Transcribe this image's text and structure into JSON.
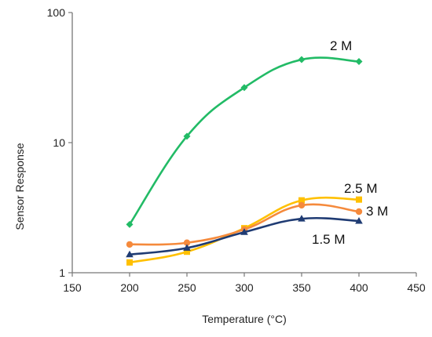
{
  "chart_data": {
    "type": "line",
    "title": "",
    "xlabel": "Temperature (°C)",
    "ylabel": "Sensor Response",
    "xlim": [
      150,
      450
    ],
    "ylim": [
      1,
      100
    ],
    "yscale": "log",
    "grid": false,
    "legend": "none",
    "x_ticks": [
      "150",
      "200",
      "250",
      "300",
      "350",
      "400",
      "450"
    ],
    "y_ticks": [
      "1",
      "10",
      "100"
    ],
    "series": [
      {
        "name": "2 M",
        "color": "#22bb66",
        "marker": "diamond",
        "x": [
          200,
          250,
          300,
          350,
          400
        ],
        "values": [
          2.35,
          11.2,
          26.5,
          43.5,
          42.0
        ]
      },
      {
        "name": "2.5 M",
        "color": "#ffc000",
        "marker": "square",
        "x": [
          200,
          250,
          300,
          350,
          400
        ],
        "values": [
          1.2,
          1.45,
          2.2,
          3.6,
          3.65
        ]
      },
      {
        "name": "3 M",
        "color": "#f58a3c",
        "marker": "circle",
        "x": [
          200,
          250,
          300,
          350,
          400
        ],
        "values": [
          1.65,
          1.7,
          2.15,
          3.3,
          2.95
        ]
      },
      {
        "name": "1.5 M",
        "color": "#1f3b73",
        "marker": "triangle",
        "x": [
          200,
          250,
          300,
          350,
          400
        ],
        "values": [
          1.38,
          1.55,
          2.05,
          2.6,
          2.5
        ]
      }
    ]
  }
}
